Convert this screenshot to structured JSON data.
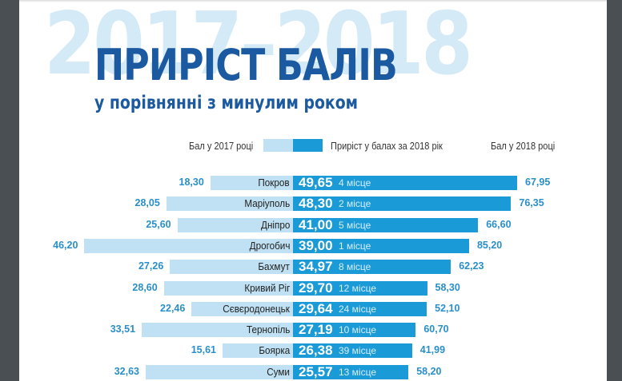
{
  "header": {
    "background_year": "2017–2018",
    "title": "ПРИРІСТ БАЛІВ",
    "subtitle": "у порівнянні з минулим роком"
  },
  "legend": {
    "score_2017": "Бал у 2017 році",
    "gain_2018": "Приріст у балах за 2018 рік",
    "score_2018": "Бал у 2018 році"
  },
  "colors": {
    "title": "#1b5aa0",
    "background_year": "#d4eaf7",
    "bar_2017": "#bfe1f3",
    "bar_gain": "#1a9ad6",
    "value_labels": "#2a8fc8"
  },
  "chart_data": {
    "type": "bar",
    "orientation": "horizontal-diverging-stacked",
    "title": "ПРИРІСТ БАЛІВ",
    "subtitle": "у порівнянні з минулим роком",
    "legend": [
      "Бал у 2017 році",
      "Приріст у балах за 2018 рік",
      "Бал у 2018 році"
    ],
    "legend_position": "top",
    "grid": false,
    "categories": [
      "Покров",
      "Маріуполь",
      "Дніпро",
      "Дрогобич",
      "Бахмут",
      "Кривий Ріг",
      "Сєвєродонецьк",
      "Тернопіль",
      "Боярка",
      "Суми"
    ],
    "series": [
      {
        "name": "Бал у 2017 році",
        "values": [
          18.3,
          28.05,
          25.6,
          46.2,
          27.26,
          28.6,
          22.46,
          33.51,
          15.61,
          32.63
        ]
      },
      {
        "name": "Приріст у балах за 2018 рік",
        "values": [
          49.65,
          48.3,
          41.0,
          39.0,
          34.97,
          29.7,
          29.64,
          27.19,
          26.38,
          25.57
        ]
      },
      {
        "name": "Бал у 2018 році",
        "values": [
          67.95,
          76.35,
          66.6,
          85.2,
          62.23,
          58.3,
          52.1,
          60.7,
          41.99,
          58.2
        ]
      }
    ],
    "rows": [
      {
        "city": "Покров",
        "score_2017": "18,30",
        "gain": "49,65",
        "place": "4 місце",
        "score_2018": "67,95"
      },
      {
        "city": "Маріуполь",
        "score_2017": "28,05",
        "gain": "48,30",
        "place": "2 місце",
        "score_2018": "76,35"
      },
      {
        "city": "Дніпро",
        "score_2017": "25,60",
        "gain": "41,00",
        "place": "5 місце",
        "score_2018": "66,60"
      },
      {
        "city": "Дрогобич",
        "score_2017": "46,20",
        "gain": "39,00",
        "place": "1 місце",
        "score_2018": "85,20"
      },
      {
        "city": "Бахмут",
        "score_2017": "27,26",
        "gain": "34,97",
        "place": "8 місце",
        "score_2018": "62,23"
      },
      {
        "city": "Кривий Ріг",
        "score_2017": "28,60",
        "gain": "29,70",
        "place": "12 місце",
        "score_2018": "58,30"
      },
      {
        "city": "Сєвєродонецьк",
        "score_2017": "22,46",
        "gain": "29,64",
        "place": "24 місце",
        "score_2018": "52,10"
      },
      {
        "city": "Тернопіль",
        "score_2017": "33,51",
        "gain": "27,19",
        "place": "10 місце",
        "score_2018": "60,70"
      },
      {
        "city": "Боярка",
        "score_2017": "15,61",
        "gain": "26,38",
        "place": "39 місце",
        "score_2018": "41,99"
      },
      {
        "city": "Суми",
        "score_2017": "32,63",
        "gain": "25,57",
        "place": "13 місце",
        "score_2018": "58,20"
      }
    ]
  }
}
